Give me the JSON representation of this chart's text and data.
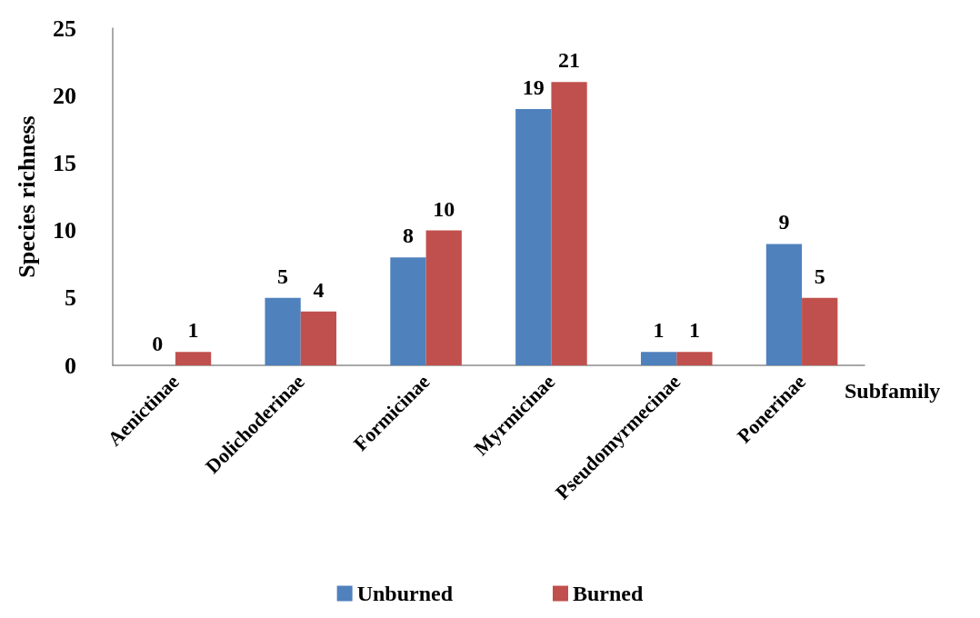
{
  "chart_data": {
    "type": "bar",
    "xlabel": "Subfamily",
    "ylabel": "Species richness",
    "categories": [
      "Aenictinae",
      "Dolichoderinae",
      "Formicinae",
      "Myrmicinae",
      "Pseudomyrmecinae",
      "Ponerinae"
    ],
    "series": [
      {
        "name": "Unburned",
        "color": "#4f81bd",
        "values": [
          0,
          5,
          8,
          19,
          1,
          9
        ]
      },
      {
        "name": "Burned",
        "color": "#c0504d",
        "values": [
          1,
          4,
          10,
          21,
          1,
          5
        ]
      }
    ],
    "ylim": [
      0,
      25
    ],
    "yticks": [
      0,
      5,
      10,
      15,
      20,
      25
    ],
    "grid": false,
    "legend": "bottom",
    "data_labels": true
  }
}
